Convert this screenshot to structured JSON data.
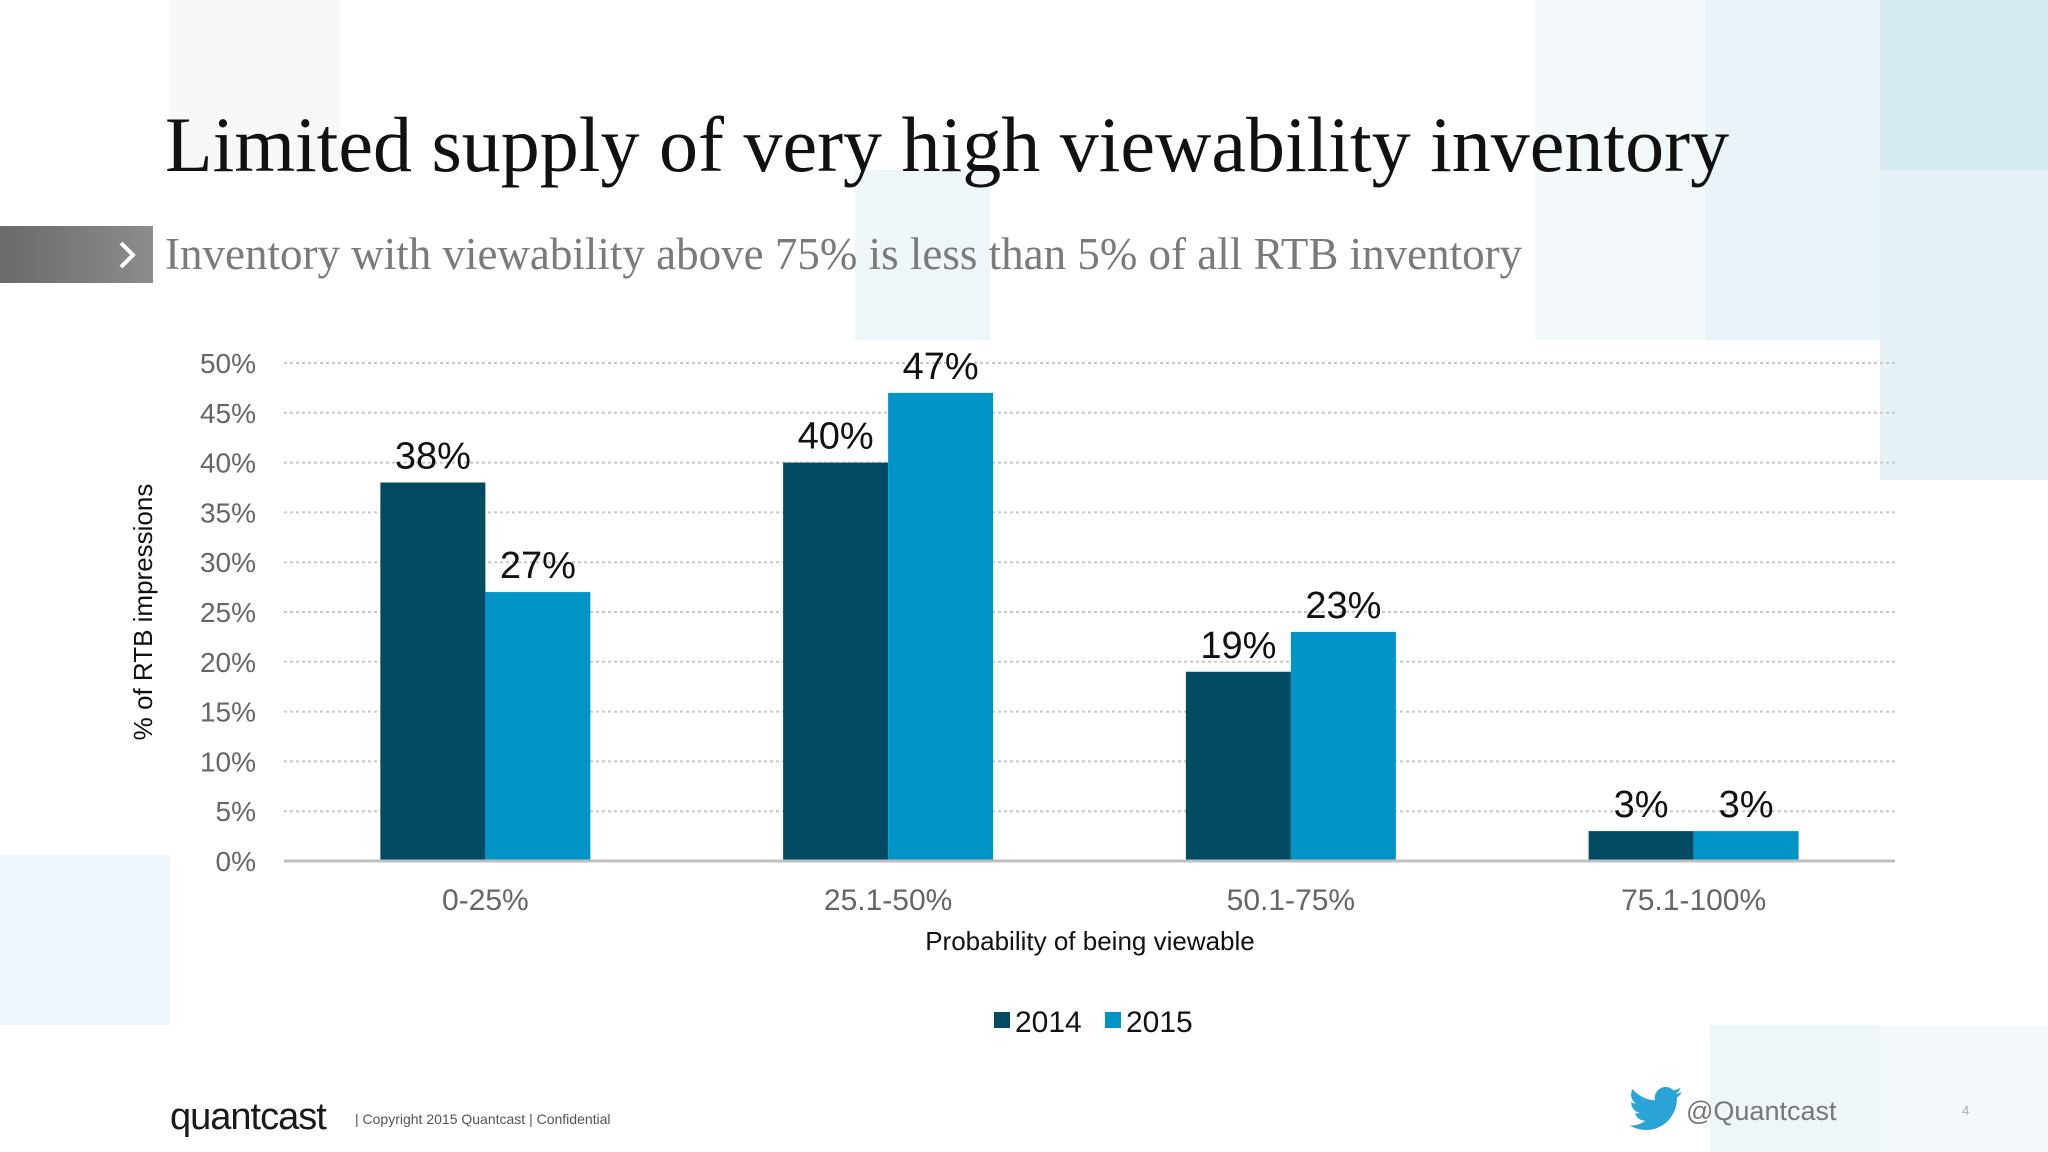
{
  "slide": {
    "title": "Limited supply of very high viewability inventory",
    "subtitle": "Inventory with viewability above 75% is less than 5% of all RTB inventory",
    "page_number": "4"
  },
  "footer": {
    "logo_text": "quantcast",
    "copyright": "|   Copyright 2015 Quantcast   |   Confidential",
    "twitter_handle": "@Quantcast"
  },
  "colors": {
    "series_2014": "#024b63",
    "series_2015": "#0194c7",
    "gridline": "#c8c8c8",
    "axis": "#bfbfbf"
  },
  "icons": {
    "arrow": "chevron-right-icon",
    "twitter": "twitter-bird-icon"
  },
  "chart_data": {
    "type": "bar",
    "title": "",
    "xlabel": "Probability of being viewable",
    "ylabel": "% of RTB impressions",
    "categories": [
      "0-25%",
      "25.1-50%",
      "50.1-75%",
      "75.1-100%"
    ],
    "series": [
      {
        "name": "2014",
        "values": [
          38,
          40,
          19,
          3
        ],
        "labels": [
          "38%",
          "40%",
          "19%",
          "3%"
        ]
      },
      {
        "name": "2015",
        "values": [
          27,
          47,
          23,
          3
        ],
        "labels": [
          "27%",
          "47%",
          "23%",
          "3%"
        ]
      }
    ],
    "ylim": [
      0,
      50
    ],
    "yticks": [
      "0%",
      "5%",
      "10%",
      "15%",
      "20%",
      "25%",
      "30%",
      "35%",
      "40%",
      "45%",
      "50%"
    ],
    "grid": true,
    "legend_position": "bottom"
  }
}
